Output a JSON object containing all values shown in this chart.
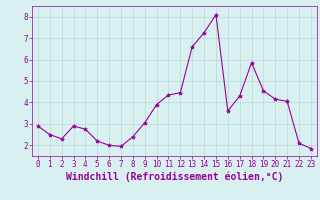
{
  "x": [
    0,
    1,
    2,
    3,
    4,
    5,
    6,
    7,
    8,
    9,
    10,
    11,
    12,
    13,
    14,
    15,
    16,
    17,
    18,
    19,
    20,
    21,
    22,
    23
  ],
  "y": [
    2.9,
    2.5,
    2.3,
    2.9,
    2.75,
    2.2,
    2.0,
    1.95,
    2.4,
    3.05,
    3.9,
    4.35,
    4.45,
    6.6,
    7.25,
    8.1,
    3.6,
    4.3,
    5.85,
    4.55,
    4.15,
    4.05,
    2.1,
    1.85
  ],
  "line_color": "#990099",
  "marker": "*",
  "marker_size": 3,
  "bg_color": "#d8f0f0",
  "grid_color": "#b8d8d8",
  "xlabel": "Windchill (Refroidissement éolien,°C)",
  "ylim": [
    1.5,
    8.5
  ],
  "xlim": [
    -0.5,
    23.5
  ],
  "yticks": [
    2,
    3,
    4,
    5,
    6,
    7,
    8
  ],
  "xticks": [
    0,
    1,
    2,
    3,
    4,
    5,
    6,
    7,
    8,
    9,
    10,
    11,
    12,
    13,
    14,
    15,
    16,
    17,
    18,
    19,
    20,
    21,
    22,
    23
  ],
  "tick_fontsize": 5.5,
  "xlabel_fontsize": 7,
  "figwidth": 3.2,
  "figheight": 2.0,
  "dpi": 100
}
